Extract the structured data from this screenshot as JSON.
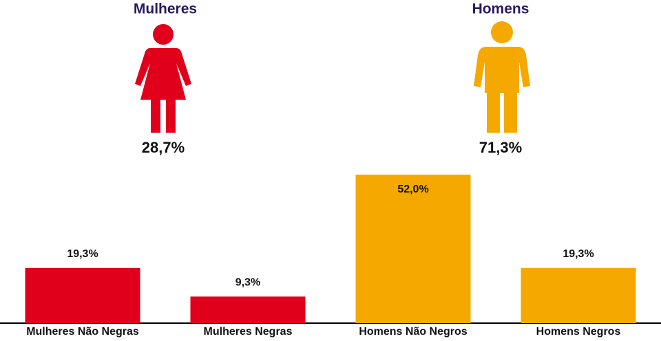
{
  "chart_data": {
    "type": "bar",
    "groups": [
      {
        "name": "Mulheres",
        "label": "28,7%",
        "color": "#e0001b"
      },
      {
        "name": "Homens",
        "label": "71,3%",
        "color": "#f5a800"
      }
    ],
    "categories": [
      "Mulheres Não Negras",
      "Mulheres Negras",
      "Homens Não Negros",
      "Homens Negros"
    ],
    "values": [
      19.3,
      9.3,
      52.0,
      19.3
    ],
    "value_labels": [
      "19,3%",
      "9,3%",
      "52,0%",
      "19,3%"
    ],
    "colors": [
      "#e0001b",
      "#e0001b",
      "#f5a800",
      "#f5a800"
    ]
  }
}
